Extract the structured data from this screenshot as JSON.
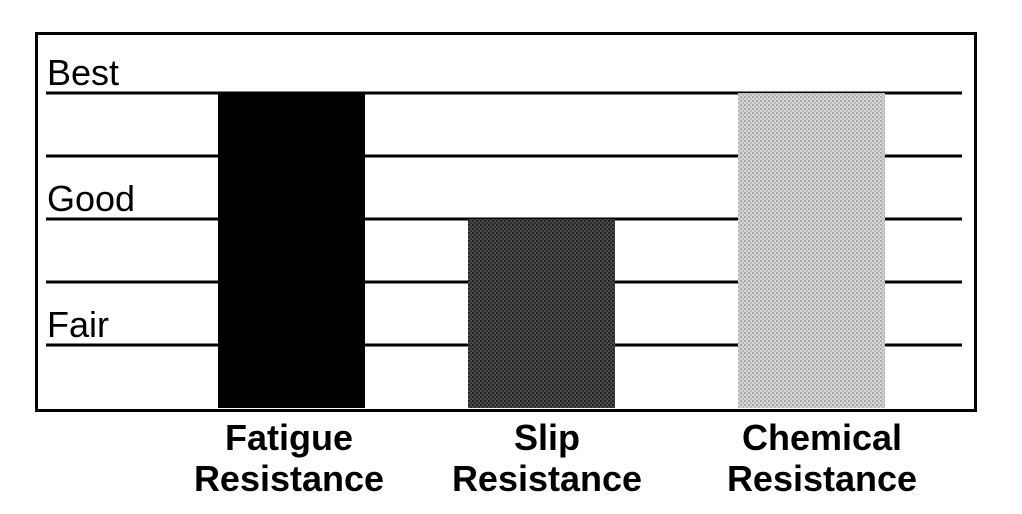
{
  "chart_data": {
    "type": "bar",
    "categories": [
      [
        "Fatigue",
        "Resistance"
      ],
      [
        "Slip",
        "Resistance"
      ],
      [
        "Chemical",
        "Resistance"
      ]
    ],
    "values": [
      6,
      4,
      6
    ],
    "ylim": [
      1,
      6
    ],
    "level_labels": [
      {
        "text": "Fair",
        "value": 2
      },
      {
        "text": "Good",
        "value": 4
      },
      {
        "text": "Best",
        "value": 6
      }
    ],
    "bar_colors": [
      "#000000",
      "#3a3a3a",
      "#c4c4c4"
    ],
    "grid": true
  }
}
